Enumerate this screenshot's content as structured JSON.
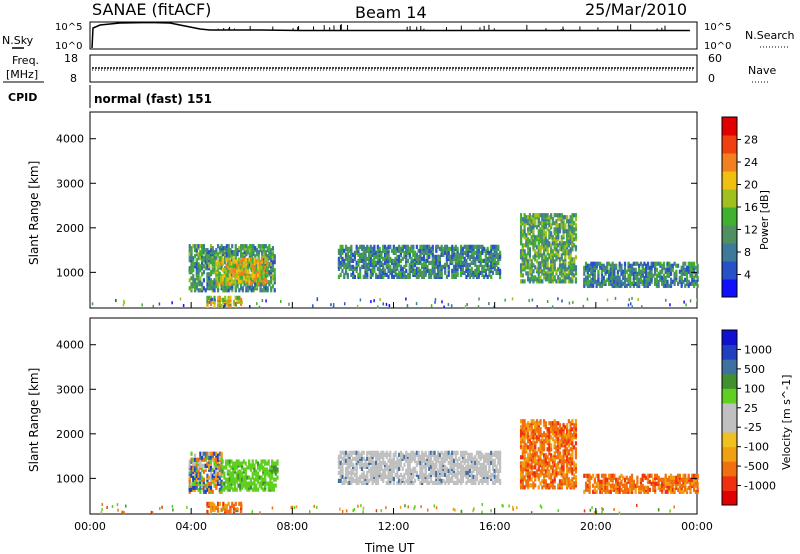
{
  "header": {
    "station": "SANAE (fitACF)",
    "beam": "Beam 14",
    "date": "25/Mar/2010"
  },
  "sky_panel": {
    "left_label": "N.Sky",
    "right_label": "N.Search",
    "left_ticks": [
      "10^5",
      "10^0"
    ],
    "right_ticks": [
      "10^5",
      "10^0"
    ]
  },
  "freq_panel": {
    "left_label_1": "Freq.",
    "left_label_2": "[MHz]",
    "right_label": "Nave",
    "left_ticks": [
      "18",
      "8"
    ],
    "right_ticks": [
      "60",
      "0"
    ]
  },
  "cpid": {
    "label": "CPID",
    "mode_text": "normal (fast) 151"
  },
  "colors": {
    "power": [
      "#1010ff",
      "#2850c8",
      "#3c7a9a",
      "#509060",
      "#40b030",
      "#a0c020",
      "#f0c010",
      "#f08020",
      "#f04010",
      "#e00000"
    ],
    "velocity": [
      "#e00000",
      "#f03010",
      "#f07010",
      "#f0a010",
      "#f0c020",
      "#c0c0c0",
      "#c0c0c0",
      "#60d020",
      "#409030",
      "#4070a0",
      "#2040c0",
      "#1010d0"
    ]
  },
  "chart_data": [
    {
      "type": "heatmap",
      "name": "power",
      "ylabel": "Slant Range [km]",
      "yticks": [
        "1000",
        "2000",
        "3000",
        "4000"
      ],
      "ylim": [
        200,
        4600
      ],
      "xlim_hours": [
        0,
        24
      ],
      "colorbar": {
        "label": "Power [dB]",
        "ticks": [
          "4",
          "8",
          "12",
          "16",
          "20",
          "24",
          "28"
        ],
        "range": [
          0,
          32
        ]
      },
      "regions": [
        {
          "t0": 3.9,
          "t1": 7.3,
          "r0": 600,
          "r1": 1600,
          "level": 0.3
        },
        {
          "t0": 5.0,
          "t1": 7.0,
          "r0": 750,
          "r1": 1300,
          "level": 0.55
        },
        {
          "t0": 4.6,
          "t1": 6.0,
          "r0": 250,
          "r1": 450,
          "level": 0.5
        },
        {
          "t0": 9.8,
          "t1": 16.2,
          "r0": 900,
          "r1": 1600,
          "level": 0.25
        },
        {
          "t0": 17.0,
          "t1": 19.2,
          "r0": 800,
          "r1": 2300,
          "level": 0.35
        },
        {
          "t0": 19.5,
          "t1": 24.0,
          "r0": 700,
          "r1": 1200,
          "level": 0.25
        }
      ]
    },
    {
      "type": "heatmap",
      "name": "velocity",
      "ylabel": "Slant Range [km]",
      "yticks": [
        "1000",
        "2000",
        "3000",
        "4000"
      ],
      "ylim": [
        200,
        4600
      ],
      "xlim_hours": [
        0,
        24
      ],
      "xlabel": "Time UT",
      "xticks": [
        "00:00",
        "04:00",
        "08:00",
        "12:00",
        "16:00",
        "20:00",
        "00:00"
      ],
      "colorbar": {
        "label": "Velocity [m s^-1]",
        "ticks": [
          "1000",
          "500",
          "100",
          "25",
          "-25",
          "-100",
          "-500",
          "-1000"
        ]
      },
      "regions": [
        {
          "t0": 3.9,
          "t1": 5.2,
          "r0": 700,
          "r1": 1600,
          "class": "mixed"
        },
        {
          "t0": 5.2,
          "t1": 7.4,
          "r0": 750,
          "r1": 1400,
          "class": "green"
        },
        {
          "t0": 4.6,
          "t1": 6.0,
          "r0": 250,
          "r1": 450,
          "class": "orange"
        },
        {
          "t0": 9.8,
          "t1": 16.2,
          "r0": 900,
          "r1": 1600,
          "class": "grey"
        },
        {
          "t0": 17.0,
          "t1": 19.2,
          "r0": 800,
          "r1": 2300,
          "class": "orange"
        },
        {
          "t0": 19.5,
          "t1": 24.0,
          "r0": 700,
          "r1": 1100,
          "class": "orange"
        }
      ]
    }
  ]
}
